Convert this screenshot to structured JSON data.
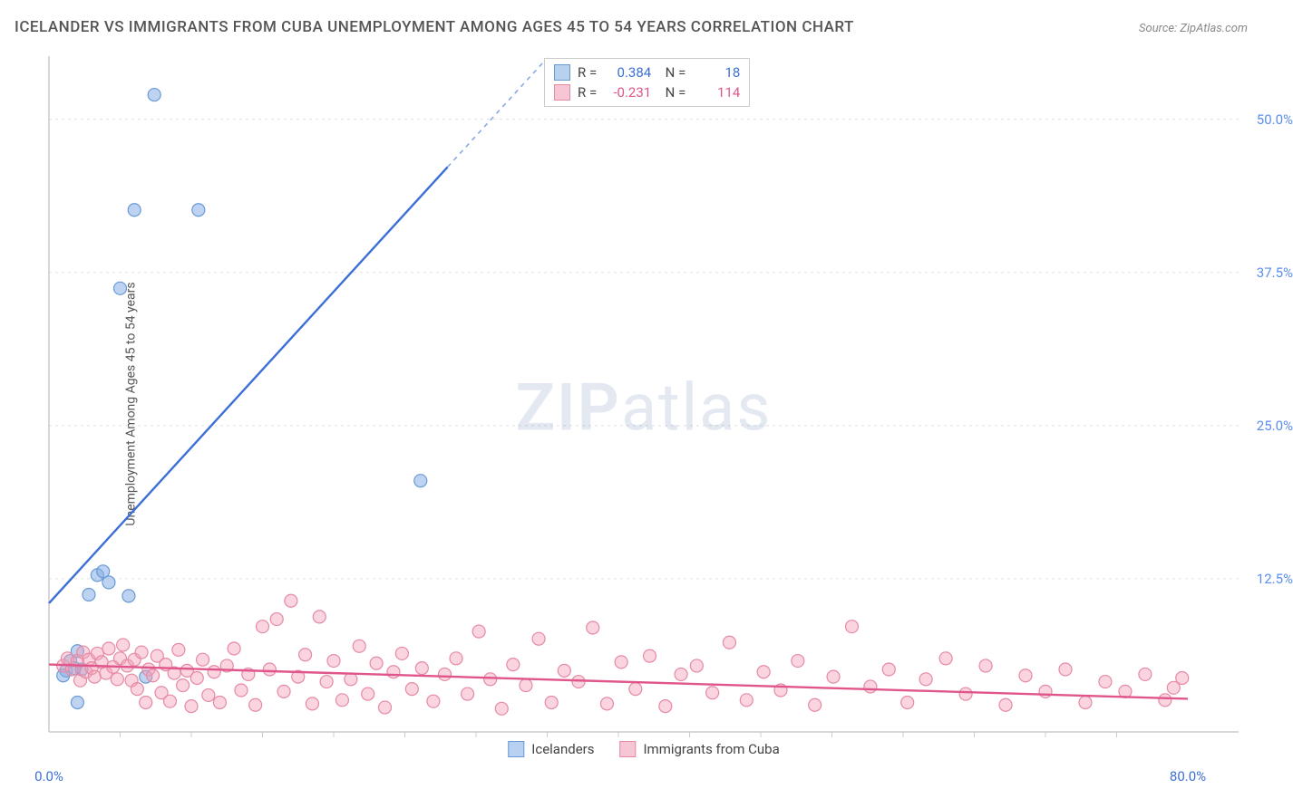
{
  "title": "ICELANDER VS IMMIGRANTS FROM CUBA UNEMPLOYMENT AMONG AGES 45 TO 54 YEARS CORRELATION CHART",
  "source": "Source: ZipAtlas.com",
  "y_axis_label": "Unemployment Among Ages 45 to 54 years",
  "watermark_left": "ZIP",
  "watermark_right": "atlas",
  "chart": {
    "type": "scatter",
    "background_color": "#ffffff",
    "grid_color": "#e0e0e0",
    "axis_color": "#cccccc",
    "xlim": [
      0,
      80
    ],
    "ylim": [
      0,
      55
    ],
    "y_ticks": [
      {
        "value": 12.5,
        "label": "12.5%"
      },
      {
        "value": 25.0,
        "label": "25.0%"
      },
      {
        "value": 37.5,
        "label": "37.5%"
      },
      {
        "value": 50.0,
        "label": "50.0%"
      }
    ],
    "x_ticks": [
      {
        "value": 0,
        "label": "0.0%"
      },
      {
        "value": 80,
        "label": "80.0%"
      }
    ],
    "x_minor_ticks": [
      5,
      10,
      15,
      20,
      25,
      30,
      35,
      40,
      45,
      50,
      55,
      60,
      65,
      70,
      75
    ],
    "y_tick_color": "#5b8def",
    "series": [
      {
        "name": "Icelanders",
        "color_fill": "rgba(135,175,230,0.55)",
        "color_stroke": "#6a9ad4",
        "swatch_fill": "#b9d1f0",
        "swatch_border": "#6a9ad4",
        "R": "0.384",
        "N": "18",
        "stat_color": "#3b6fd6",
        "marker_radius": 7,
        "points": [
          [
            1.2,
            5.0
          ],
          [
            1.5,
            5.8
          ],
          [
            1.8,
            5.2
          ],
          [
            2.0,
            6.6
          ],
          [
            2.3,
            5.1
          ],
          [
            2.8,
            11.2
          ],
          [
            3.4,
            12.8
          ],
          [
            4.2,
            12.2
          ],
          [
            3.8,
            13.1
          ],
          [
            5.6,
            11.1
          ],
          [
            5.0,
            36.2
          ],
          [
            6.0,
            42.6
          ],
          [
            10.5,
            42.6
          ],
          [
            7.4,
            52.0
          ],
          [
            2.0,
            2.4
          ],
          [
            26.1,
            20.5
          ],
          [
            6.8,
            4.5
          ],
          [
            1.0,
            4.6
          ]
        ],
        "trend": {
          "x1": 0,
          "y1": 10.5,
          "x2": 35,
          "y2": 55,
          "dash_after_x": 28
        }
      },
      {
        "name": "Immigrants from Cuba",
        "color_fill": "rgba(245,160,185,0.45)",
        "color_stroke": "#e58aa5",
        "swatch_fill": "#f7c6d4",
        "swatch_border": "#e58aa5",
        "R": "-0.231",
        "N": "114",
        "stat_color": "#e0558a",
        "marker_radius": 7,
        "points": [
          [
            1,
            5.4
          ],
          [
            1.3,
            6
          ],
          [
            1.6,
            5.1
          ],
          [
            2,
            5.8
          ],
          [
            2.2,
            4.2
          ],
          [
            2.4,
            6.5
          ],
          [
            2.6,
            4.9
          ],
          [
            2.8,
            5.9
          ],
          [
            3,
            5.2
          ],
          [
            3.2,
            4.5
          ],
          [
            3.4,
            6.4
          ],
          [
            3.7,
            5.7
          ],
          [
            4,
            4.8
          ],
          [
            4.2,
            6.8
          ],
          [
            4.5,
            5.3
          ],
          [
            4.8,
            4.3
          ],
          [
            5,
            6
          ],
          [
            5.2,
            7.1
          ],
          [
            5.5,
            5.4
          ],
          [
            5.8,
            4.2
          ],
          [
            6,
            5.9
          ],
          [
            6.2,
            3.5
          ],
          [
            6.5,
            6.5
          ],
          [
            6.8,
            2.4
          ],
          [
            7,
            5.1
          ],
          [
            7.3,
            4.6
          ],
          [
            7.6,
            6.2
          ],
          [
            7.9,
            3.2
          ],
          [
            8.2,
            5.5
          ],
          [
            8.5,
            2.5
          ],
          [
            8.8,
            4.8
          ],
          [
            9.1,
            6.7
          ],
          [
            9.4,
            3.8
          ],
          [
            9.7,
            5
          ],
          [
            10,
            2.1
          ],
          [
            10.4,
            4.4
          ],
          [
            10.8,
            5.9
          ],
          [
            11.2,
            3
          ],
          [
            11.6,
            4.9
          ],
          [
            12,
            2.4
          ],
          [
            12.5,
            5.4
          ],
          [
            13,
            6.8
          ],
          [
            13.5,
            3.4
          ],
          [
            14,
            4.7
          ],
          [
            14.5,
            2.2
          ],
          [
            15,
            8.6
          ],
          [
            15.5,
            5.1
          ],
          [
            16,
            9.2
          ],
          [
            16.5,
            3.3
          ],
          [
            17,
            10.7
          ],
          [
            17.5,
            4.5
          ],
          [
            18,
            6.3
          ],
          [
            18.5,
            2.3
          ],
          [
            19,
            9.4
          ],
          [
            19.5,
            4.1
          ],
          [
            20,
            5.8
          ],
          [
            20.6,
            2.6
          ],
          [
            21.2,
            4.3
          ],
          [
            21.8,
            7
          ],
          [
            22.4,
            3.1
          ],
          [
            23,
            5.6
          ],
          [
            23.6,
            2
          ],
          [
            24.2,
            4.9
          ],
          [
            24.8,
            6.4
          ],
          [
            25.5,
            3.5
          ],
          [
            26.2,
            5.2
          ],
          [
            27,
            2.5
          ],
          [
            27.8,
            4.7
          ],
          [
            28.6,
            6
          ],
          [
            29.4,
            3.1
          ],
          [
            30.2,
            8.2
          ],
          [
            31,
            4.3
          ],
          [
            31.8,
            1.9
          ],
          [
            32.6,
            5.5
          ],
          [
            33.5,
            3.8
          ],
          [
            34.4,
            7.6
          ],
          [
            35.3,
            2.4
          ],
          [
            36.2,
            5
          ],
          [
            37.2,
            4.1
          ],
          [
            38.2,
            8.5
          ],
          [
            39.2,
            2.3
          ],
          [
            40.2,
            5.7
          ],
          [
            41.2,
            3.5
          ],
          [
            42.2,
            6.2
          ],
          [
            43.3,
            2.1
          ],
          [
            44.4,
            4.7
          ],
          [
            45.5,
            5.4
          ],
          [
            46.6,
            3.2
          ],
          [
            47.8,
            7.3
          ],
          [
            49,
            2.6
          ],
          [
            50.2,
            4.9
          ],
          [
            51.4,
            3.4
          ],
          [
            52.6,
            5.8
          ],
          [
            53.8,
            2.2
          ],
          [
            55.1,
            4.5
          ],
          [
            56.4,
            8.6
          ],
          [
            57.7,
            3.7
          ],
          [
            59,
            5.1
          ],
          [
            60.3,
            2.4
          ],
          [
            61.6,
            4.3
          ],
          [
            63,
            6
          ],
          [
            64.4,
            3.1
          ],
          [
            65.8,
            5.4
          ],
          [
            67.2,
            2.2
          ],
          [
            68.6,
            4.6
          ],
          [
            70,
            3.3
          ],
          [
            71.4,
            5.1
          ],
          [
            72.8,
            2.4
          ],
          [
            74.2,
            4.1
          ],
          [
            75.6,
            3.3
          ],
          [
            77,
            4.7
          ],
          [
            78.4,
            2.6
          ],
          [
            79,
            3.6
          ],
          [
            79.6,
            4.4
          ]
        ],
        "trend": {
          "x1": 0,
          "y1": 5.5,
          "x2": 80,
          "y2": 2.7,
          "dash_after_x": 999
        }
      }
    ]
  },
  "bottom_legend": [
    {
      "label": "Icelanders",
      "swatch_fill": "#b9d1f0",
      "swatch_border": "#6a9ad4"
    },
    {
      "label": "Immigrants from Cuba",
      "swatch_fill": "#f7c6d4",
      "swatch_border": "#e58aa5"
    }
  ]
}
